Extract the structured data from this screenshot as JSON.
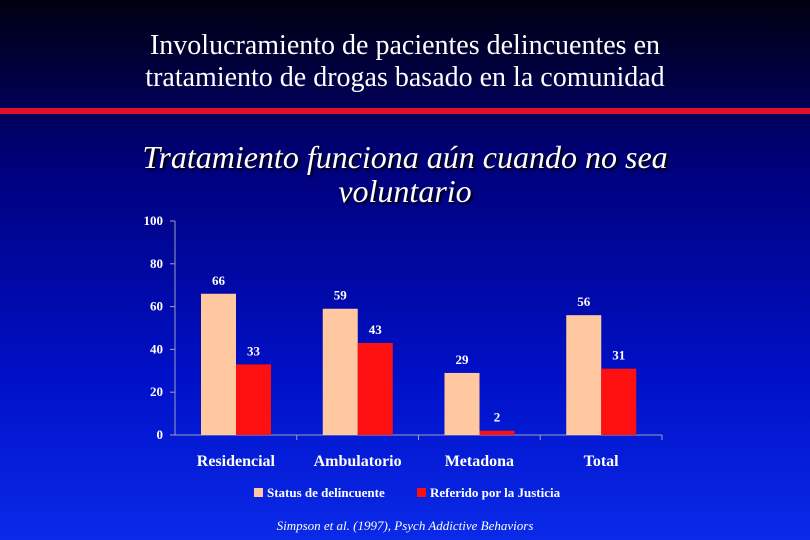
{
  "slide": {
    "title_line1": "Involucramiento de pacientes delincuentes en",
    "title_line2": "tratamiento de drogas basado en la comunidad",
    "subtitle_line1": "Tratamiento funciona aún cuando no sea",
    "subtitle_line2": "voluntario",
    "credit": "Simpson et al. (1997), Psych Addictive Behaviors",
    "colors": {
      "rule": "#e0102a"
    }
  },
  "chart_data": {
    "type": "bar",
    "title": "",
    "xlabel": "",
    "ylabel": "",
    "ylim": [
      0,
      100
    ],
    "yticks": [
      0,
      20,
      40,
      60,
      80,
      100
    ],
    "categories": [
      "Residencial",
      "Ambulatorio",
      "Metadona",
      "Total"
    ],
    "series": [
      {
        "name": "Status de delincuente",
        "color": "#ffc8a0",
        "values": [
          66,
          59,
          29,
          56
        ]
      },
      {
        "name": "Referido por la Justicia",
        "color": "#ff1010",
        "values": [
          33,
          43,
          2,
          31
        ]
      }
    ],
    "legend": "bottom",
    "grid": false
  }
}
